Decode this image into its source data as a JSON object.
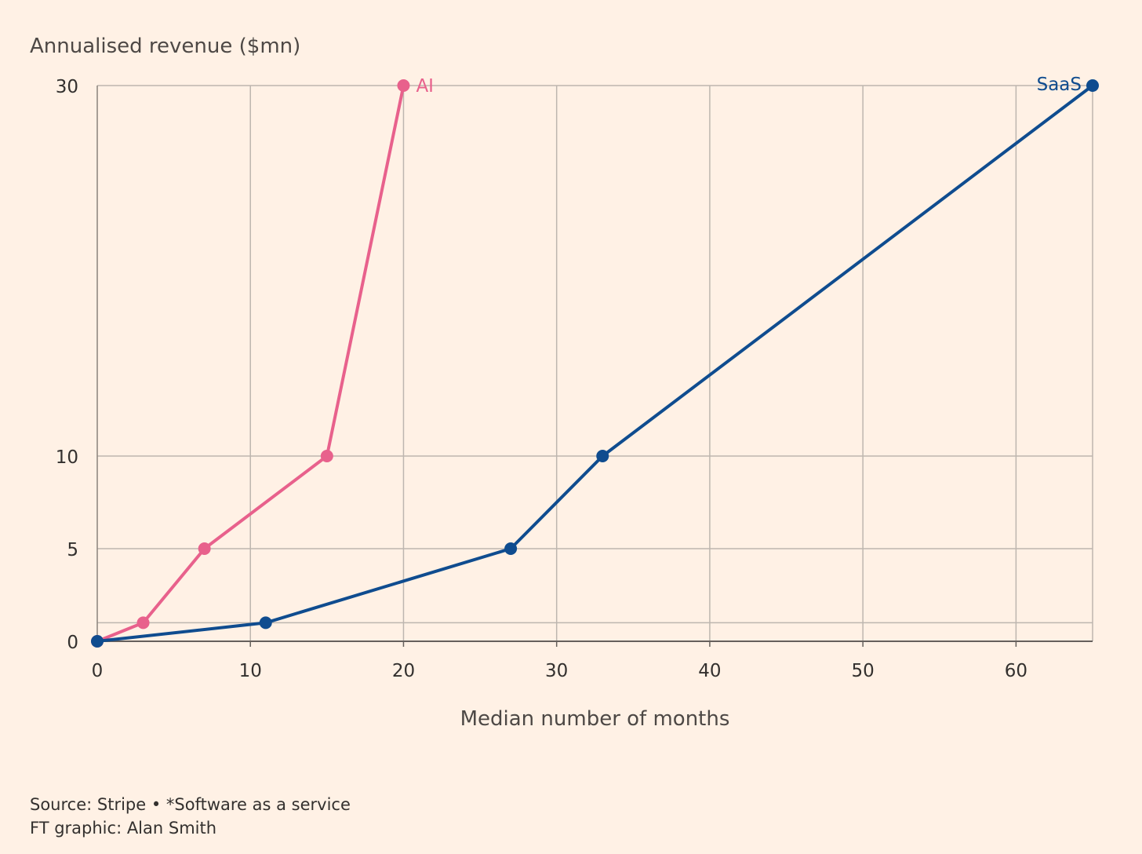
{
  "chart_data": {
    "type": "line",
    "ylabel": "Annualised revenue ($mn)",
    "xlabel": "Median number of months",
    "xlim": [
      0,
      65
    ],
    "ylim": [
      0,
      30
    ],
    "x_ticks": [
      0,
      10,
      20,
      30,
      40,
      50,
      60
    ],
    "y_ticks": [
      0,
      5,
      10,
      30
    ],
    "y_gridlines": [
      0,
      1,
      5,
      10,
      30
    ],
    "grid": true,
    "series": [
      {
        "name": "AI",
        "color": "#E8618C",
        "x": [
          0,
          3,
          7,
          15,
          20
        ],
        "y": [
          0,
          1,
          5,
          10,
          30
        ]
      },
      {
        "name": "SaaS",
        "color": "#0F4C8F",
        "x": [
          0,
          11,
          27,
          33,
          65
        ],
        "y": [
          0,
          1,
          5,
          10,
          30
        ]
      }
    ]
  },
  "footer": {
    "source": "Source: Stripe • *Software as a service",
    "credit": "FT graphic: Alan Smith"
  }
}
